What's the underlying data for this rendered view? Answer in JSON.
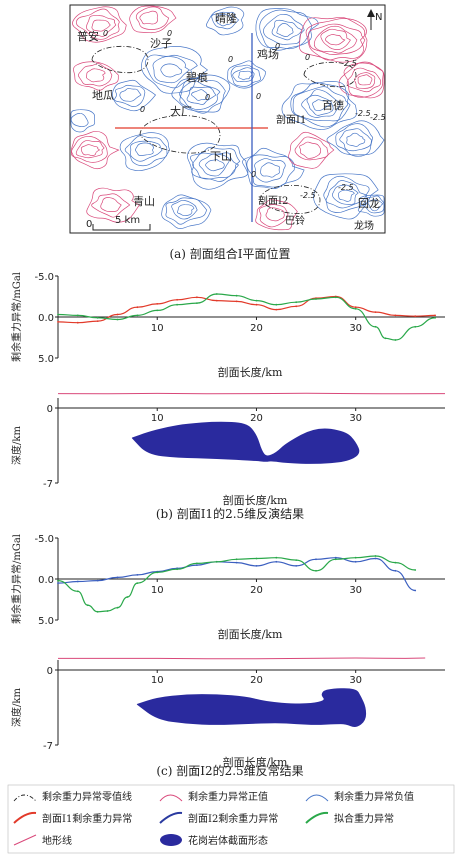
{
  "map": {
    "caption": "(a) 剖面组合Ⅰ平面位置",
    "north_label": "N",
    "scale_label": "5 km",
    "scale_zero": "0",
    "places": [
      "晴隆",
      "普安",
      "沙子",
      "鸡场",
      "碧痕",
      "地瓜",
      "大厂",
      "百德",
      "下山",
      "青山",
      "剖面Ⅰ1",
      "剖面Ⅰ2",
      "巴铃",
      "回龙",
      "龙场"
    ],
    "contour_labels": [
      "0",
      "0",
      "0",
      "0",
      "0",
      "0",
      "0",
      "2.5",
      "-2.5",
      "-2.5",
      "-2.5",
      "-2.5",
      "0",
      "0"
    ],
    "colors": {
      "positive": "#d9487a",
      "negative": "#4a78c8",
      "zero": "#222222",
      "profile_i1": "#e23a2a",
      "profile_i2": "#3b5fc0"
    }
  },
  "panel_b": {
    "caption": "(b) 剖面Ⅰ1的2.5维反演结果",
    "gravity_ylabel": "剩余重力异常/mGal",
    "gravity_xlabel": "剖面长度/km",
    "depth_ylabel": "深度/km",
    "depth_xlabel": "剖面长度/km",
    "gravity_ticks": [
      "-5.0",
      "0.0",
      "5.0"
    ],
    "depth_ticks": [
      "0",
      "-7"
    ],
    "x_ticks": [
      "10",
      "20",
      "30"
    ]
  },
  "panel_c": {
    "caption": "(c) 剖面Ⅰ2的2.5维反常结果",
    "gravity_ylabel": "剩余重力异常/mGal",
    "gravity_xlabel": "剖面长度/km",
    "depth_ylabel": "深度/km",
    "depth_xlabel": "剖面长度/km",
    "gravity_ticks": [
      "-5.0",
      "0.0",
      "5.0"
    ],
    "depth_ticks": [
      "0",
      "-7"
    ],
    "x_ticks": [
      "10",
      "20",
      "30"
    ]
  },
  "legend": {
    "items": [
      {
        "label": "剩余重力异常零值线",
        "icon": "zero-contour"
      },
      {
        "label": "剩余重力异常正值",
        "icon": "positive-contour"
      },
      {
        "label": "剩余重力异常负值",
        "icon": "negative-contour"
      },
      {
        "label": "剖面Ⅰ1剩余重力异常",
        "icon": "red-curve"
      },
      {
        "label": "剖面Ⅰ2剩余重力异常",
        "icon": "blue-curve"
      },
      {
        "label": "拟合重力异常",
        "icon": "green-curve"
      },
      {
        "label": "地形线",
        "icon": "pink-line"
      },
      {
        "label": "花岗岩体截面形态",
        "icon": "blue-ellipse"
      }
    ]
  },
  "chart_data": [
    {
      "type": "line",
      "title": "",
      "xlabel": "剖面长度/km",
      "ylabel": "剩余重力异常/mGal",
      "xlim": [
        0,
        39
      ],
      "ylim": [
        -5,
        5
      ],
      "y_axis_inverted": true,
      "series": [
        {
          "name": "剖面Ⅰ1剩余重力异常",
          "color": "#e23a2a",
          "x": [
            0,
            2,
            4,
            6,
            8,
            10,
            12,
            14,
            16,
            18,
            20,
            22,
            24,
            26,
            28,
            30,
            32,
            34,
            36,
            38
          ],
          "y": [
            0.6,
            0.7,
            0.5,
            -0.3,
            -1.2,
            -1.6,
            -2.1,
            -2.4,
            -2.0,
            -1.9,
            -1.5,
            -0.9,
            -1.3,
            -2.3,
            -2.5,
            -1.2,
            -0.6,
            -0.2,
            -0.1,
            -0.2
          ]
        },
        {
          "name": "拟合重力异常",
          "color": "#2aa84a",
          "x": [
            0,
            2,
            4,
            6,
            8,
            10,
            12,
            14,
            16,
            18,
            20,
            22,
            24,
            26,
            28,
            30,
            32,
            33,
            34,
            36,
            38
          ],
          "y": [
            -0.3,
            -0.2,
            0.1,
            0.3,
            -0.2,
            -0.8,
            -1.5,
            -1.7,
            -2.8,
            -2.6,
            -2.0,
            -1.5,
            -1.8,
            -2.2,
            -2.4,
            -1.0,
            1.2,
            2.6,
            2.8,
            1.2,
            0.1
          ]
        }
      ]
    },
    {
      "type": "area",
      "title": "",
      "xlabel": "剖面长度/km",
      "ylabel": "深度/km",
      "xlim": [
        0,
        39
      ],
      "ylim": [
        -7,
        0
      ],
      "series": [
        {
          "name": "地形线",
          "color": "#d9487a",
          "x": [
            0,
            5,
            10,
            15,
            20,
            25,
            30,
            35,
            39
          ],
          "y": [
            0.1,
            0.05,
            0.15,
            0.05,
            0.1,
            0.2,
            0.1,
            0.05,
            0.1
          ]
        },
        {
          "name": "花岗岩体截面形态",
          "color": "#2a2a9e",
          "outline_x": [
            7.5,
            9,
            11,
            13,
            16,
            19,
            20,
            20.5,
            21,
            22,
            23,
            26,
            29,
            30,
            30.5,
            29,
            26,
            23,
            21.5,
            21,
            20,
            16,
            12,
            9,
            7.5
          ],
          "outline_y": [
            -2.8,
            -2.3,
            -1.8,
            -1.5,
            -1.3,
            -1.4,
            -2.5,
            -4.0,
            -4.6,
            -4.2,
            -3.3,
            -1.8,
            -2.2,
            -3.2,
            -4.3,
            -5.0,
            -5.2,
            -5.1,
            -4.9,
            -5.0,
            -4.9,
            -4.7,
            -4.6,
            -4.3,
            -2.8
          ]
        }
      ]
    },
    {
      "type": "line",
      "title": "",
      "xlabel": "剖面长度/km",
      "ylabel": "剩余重力异常/mGal",
      "xlim": [
        0,
        39
      ],
      "ylim": [
        -5,
        5
      ],
      "y_axis_inverted": true,
      "series": [
        {
          "name": "剖面Ⅰ2剩余重力异常",
          "color": "#3b5fc0",
          "x": [
            0,
            2,
            4,
            6,
            8,
            10,
            12,
            14,
            16,
            18,
            20,
            22,
            24,
            26,
            28,
            30,
            32,
            34,
            36
          ],
          "y": [
            0.5,
            0.3,
            0.2,
            -0.2,
            -0.5,
            -0.9,
            -1.3,
            -1.7,
            -2.1,
            -2.0,
            -1.6,
            -2.1,
            -1.6,
            -2.4,
            -2.6,
            -2.1,
            -2.5,
            -1.0,
            1.4
          ]
        },
        {
          "name": "拟合重力异常",
          "color": "#2aa84a",
          "x": [
            0,
            2,
            3,
            4,
            5,
            6,
            7,
            8,
            10,
            12,
            14,
            16,
            18,
            20,
            22,
            24,
            26,
            28,
            30,
            32,
            34,
            36
          ],
          "y": [
            0.2,
            1.5,
            3.2,
            4.0,
            3.9,
            3.5,
            2.2,
            0.5,
            -0.8,
            -1.2,
            -1.9,
            -2.1,
            -2.4,
            -2.5,
            -2.6,
            -2.3,
            -1.0,
            -2.4,
            -2.6,
            -2.8,
            -2.0,
            -1.1
          ]
        }
      ]
    },
    {
      "type": "area",
      "title": "",
      "xlabel": "剖面长度/km",
      "ylabel": "深度/km",
      "xlim": [
        0,
        39
      ],
      "ylim": [
        -7,
        0
      ],
      "series": [
        {
          "name": "地形线",
          "color": "#d9487a",
          "x": [
            0,
            5,
            10,
            15,
            20,
            25,
            30,
            35,
            37
          ],
          "y": [
            -0.6,
            -0.6,
            -0.6,
            -0.7,
            -0.7,
            -0.6,
            -0.5,
            -0.6,
            -0.5
          ]
        },
        {
          "name": "花岗岩体截面形态",
          "color": "#2a2a9e",
          "outline_x": [
            8,
            10,
            13,
            16,
            19,
            21,
            24,
            26,
            27,
            26.5,
            27,
            30,
            30.5,
            31,
            31,
            30,
            29,
            28,
            26,
            24,
            22,
            19,
            16,
            13,
            10,
            8
          ],
          "outline_y": [
            -3.2,
            -2.6,
            -2.3,
            -2.3,
            -2.5,
            -3.0,
            -3.2,
            -3.1,
            -2.8,
            -2.3,
            -1.8,
            -1.7,
            -2.5,
            -3.5,
            -4.7,
            -5.4,
            -5.0,
            -5.0,
            -5.1,
            -5.0,
            -4.9,
            -5.0,
            -5.1,
            -5.0,
            -4.6,
            -3.2
          ]
        }
      ]
    }
  ]
}
